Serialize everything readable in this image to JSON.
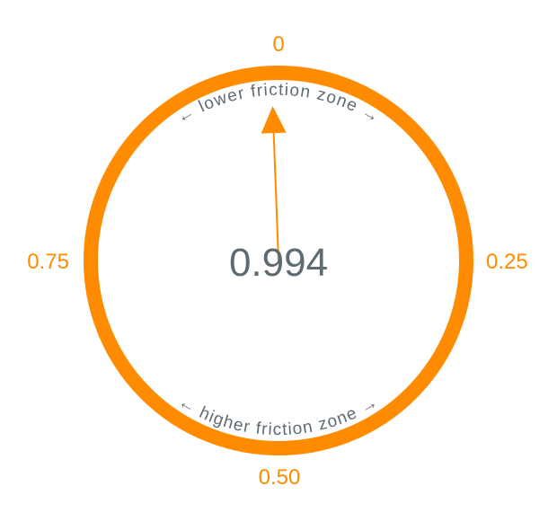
{
  "dial": {
    "value": 0.994,
    "value_label": "0.994",
    "ticks": {
      "top": "0",
      "right": "0.25",
      "bottom": "0.50",
      "left": "0.75"
    },
    "zones": {
      "upper": "← lower friction zone →",
      "lower": "← higher friction zone →"
    },
    "colors": {
      "accent": "#ff8c00",
      "text": "#5e6b73",
      "background": "#ffffff"
    }
  }
}
